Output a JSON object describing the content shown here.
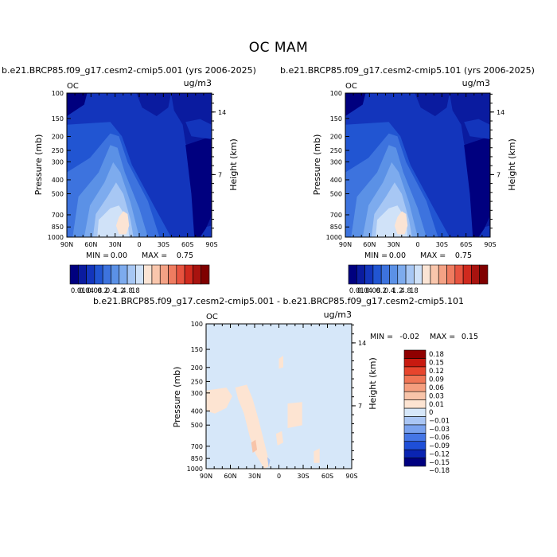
{
  "page": {
    "title": "OC MAM"
  },
  "chart_data": [
    {
      "type": "heatmap",
      "id": "panel1",
      "title": "b.e21.BRCP85.f09_g17.cesm2-cmip5.001 (yrs 2006-2025)",
      "variable": "OC",
      "units": "ug/m3",
      "ylabel": "Pressure (mb)",
      "ylabel_right": "Height (km)",
      "x_ticks": [
        "90N",
        "60N",
        "30N",
        "0",
        "30S",
        "60S",
        "90S"
      ],
      "x_tick_values": [
        90,
        60,
        30,
        0,
        -30,
        -60,
        -90
      ],
      "xlim": [
        90,
        -90
      ],
      "y_ticks": [
        "100",
        "150",
        "200",
        "250",
        "300",
        "400",
        "500",
        "700",
        "850",
        "1000"
      ],
      "y_tick_values": [
        100,
        150,
        200,
        250,
        300,
        400,
        500,
        700,
        850,
        1000
      ],
      "ylim": [
        100,
        1000
      ],
      "y_scale": "log",
      "height_ticks": [
        "14",
        "7"
      ],
      "height_tick_values": [
        14,
        7
      ],
      "min_label": "MIN =",
      "min_value": "0.00",
      "max_label": "MAX =",
      "max_value": "0.75",
      "peak": {
        "lat": 25,
        "pressure": 850,
        "value": 0.75
      }
    },
    {
      "type": "heatmap",
      "id": "panel2",
      "title": "b.e21.BRCP85.f09_g17.cesm2-cmip5.101 (yrs 2006-2025)",
      "variable": "OC",
      "units": "ug/m3",
      "ylabel": "Pressure (mb)",
      "ylabel_right": "Height (km)",
      "x_ticks": [
        "90N",
        "60N",
        "30N",
        "0",
        "30S",
        "60S",
        "90S"
      ],
      "x_tick_values": [
        90,
        60,
        30,
        0,
        -30,
        -60,
        -90
      ],
      "xlim": [
        90,
        -90
      ],
      "y_ticks": [
        "100",
        "150",
        "200",
        "250",
        "300",
        "400",
        "500",
        "700",
        "850",
        "1000"
      ],
      "y_tick_values": [
        100,
        150,
        200,
        250,
        300,
        400,
        500,
        700,
        850,
        1000
      ],
      "ylim": [
        100,
        1000
      ],
      "y_scale": "log",
      "height_ticks": [
        "14",
        "7"
      ],
      "height_tick_values": [
        14,
        7
      ],
      "min_label": "MIN =",
      "min_value": "0.00",
      "max_label": "MAX =",
      "max_value": "0.75",
      "peak": {
        "lat": 25,
        "pressure": 850,
        "value": 0.75
      }
    },
    {
      "type": "heatmap",
      "id": "diff",
      "title": "b.e21.BRCP85.f09_g17.cesm2-cmip5.001 - b.e21.BRCP85.f09_g17.cesm2-cmip5.101",
      "variable": "OC",
      "units": "ug/m3",
      "ylabel": "Pressure (mb)",
      "ylabel_right": "Height (km)",
      "x_ticks": [
        "90N",
        "60N",
        "30N",
        "0",
        "30S",
        "60S",
        "90S"
      ],
      "x_tick_values": [
        90,
        60,
        30,
        0,
        -30,
        -60,
        -90
      ],
      "xlim": [
        90,
        -90
      ],
      "y_ticks": [
        "100",
        "150",
        "200",
        "250",
        "300",
        "400",
        "500",
        "700",
        "850",
        "1000"
      ],
      "y_tick_values": [
        100,
        150,
        200,
        250,
        300,
        400,
        500,
        700,
        850,
        1000
      ],
      "ylim": [
        100,
        1000
      ],
      "y_scale": "log",
      "height_ticks": [
        "14",
        "7"
      ],
      "height_tick_values": [
        14,
        7
      ],
      "min_label": "MIN =",
      "min_value": "-0.02",
      "max_label": "MAX =",
      "max_value": "0.15"
    }
  ],
  "colorbars": {
    "main": {
      "orientation": "horizontal",
      "colors": [
        "#00007f",
        "#0a1b9f",
        "#1335bc",
        "#2155d2",
        "#3d73de",
        "#5b91e6",
        "#7dabee",
        "#a7c7f4",
        "#d0e2f8",
        "#fbe4d4",
        "#f9c6ac",
        "#f4a285",
        "#ef7c60",
        "#e7533f",
        "#d02a1e",
        "#a8130f",
        "#7f0000"
      ],
      "tick_labels": [
        "0.01",
        "0.04",
        "0.08",
        "0.2",
        "0.4",
        "1.2",
        "4.8",
        "18"
      ]
    },
    "diff": {
      "orientation": "vertical",
      "colors": [
        "#000080",
        "#0a24b2",
        "#1f4fd7",
        "#4576e6",
        "#7aa2ee",
        "#aac6f4",
        "#d6e7f9",
        "#fde4d2",
        "#f8c4a9",
        "#f59e7e",
        "#f07555",
        "#e7452d",
        "#c81a10",
        "#8f0000"
      ],
      "tick_labels": [
        "0.18",
        "0.15",
        "0.12",
        "0.09",
        "0.06",
        "0.03",
        "0.01",
        "0",
        "−0.01",
        "−0.03",
        "−0.06",
        "−0.09",
        "−0.12",
        "−0.15",
        "−0.18"
      ]
    }
  }
}
